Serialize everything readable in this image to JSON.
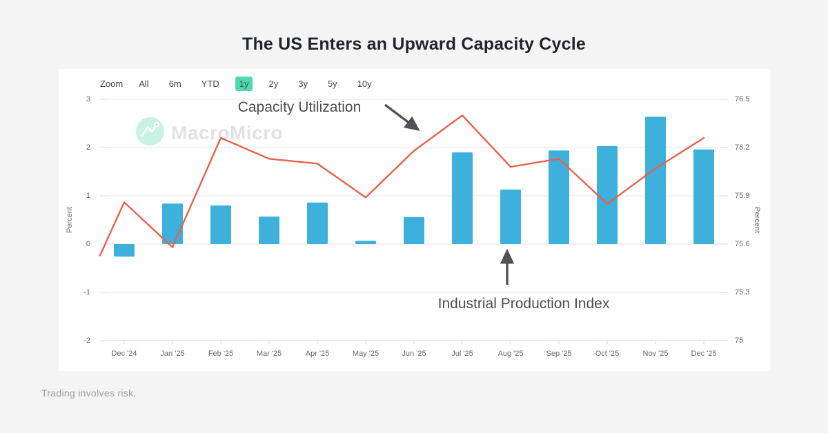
{
  "page": {
    "title": "The US Enters an Upward Capacity Cycle",
    "footer": "Trading involves risk."
  },
  "toolbar": {
    "zoom_label": "Zoom",
    "ranges": [
      "All",
      "6m",
      "YTD",
      "1y",
      "2y",
      "3y",
      "5y",
      "10y"
    ],
    "selected": "1y"
  },
  "watermark": {
    "brand": "MacroMicro"
  },
  "annotations": {
    "line_label": "Capacity Utilization",
    "bar_label": "Industrial Production Index"
  },
  "chart_data": {
    "type": "bar+line combo",
    "title": "The US Enters an Upward Capacity Cycle",
    "categories": [
      "Dec '24",
      "Jan '25",
      "Feb '25",
      "Mar '25",
      "Apr '25",
      "May '25",
      "Jun '25",
      "Jul '25",
      "Aug '25",
      "Sep '25",
      "Oct '25",
      "Nov '25",
      "Dec '25"
    ],
    "series": [
      {
        "name": "Industrial Production Index",
        "type": "bar",
        "axis": "left",
        "color": "#3eb0dc",
        "values": [
          -0.26,
          0.84,
          0.8,
          0.57,
          0.86,
          0.07,
          0.56,
          1.9,
          1.13,
          1.94,
          2.03,
          2.64,
          1.96
        ]
      },
      {
        "name": "Capacity Utilization",
        "type": "line",
        "axis": "right",
        "color": "#e8604c",
        "left_edge_value": 75.53,
        "values": [
          75.86,
          75.58,
          76.26,
          76.13,
          76.1,
          75.89,
          76.18,
          76.4,
          76.08,
          76.13,
          75.85,
          76.07,
          76.26
        ]
      }
    ],
    "left_axis": {
      "title": "Percent",
      "min": -2,
      "max": 3,
      "tick_labels": [
        "3",
        "2",
        "1",
        "0",
        "-1",
        "-2"
      ],
      "tick_values": [
        3,
        2,
        1,
        0,
        -1,
        -2
      ]
    },
    "right_axis": {
      "title": "Percent",
      "min": 75,
      "max": 76.5,
      "tick_labels": [
        "76.5",
        "76.2",
        "75.9",
        "75.6",
        "75.3",
        "75"
      ],
      "tick_values": [
        76.5,
        76.2,
        75.9,
        75.6,
        75.3,
        75
      ]
    },
    "grid": true,
    "legend": "none"
  },
  "colors": {
    "bar": "#3eb0dc",
    "line": "#e8604c",
    "grid": "#e6e6e6",
    "axis_line": "#ccd6eb",
    "selected_range_bg": "#50d8b1",
    "arrow": "#4f5358",
    "page_bg": "#f4f4f4"
  }
}
